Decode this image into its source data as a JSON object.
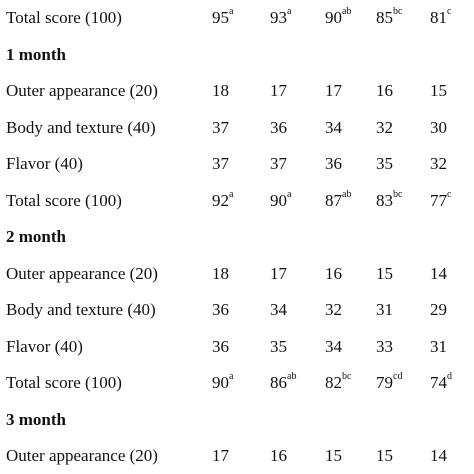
{
  "rows": [
    {
      "type": "data",
      "label": "Total score (100)",
      "values": [
        {
          "v": "95",
          "s": "a"
        },
        {
          "v": "93",
          "s": "a"
        },
        {
          "v": "90",
          "s": "ab"
        },
        {
          "v": "85",
          "s": "bc"
        },
        {
          "v": "81",
          "s": "c"
        }
      ]
    },
    {
      "type": "section",
      "label": "1 month"
    },
    {
      "type": "data",
      "label": "Outer appearance (20)",
      "values": [
        {
          "v": "18",
          "s": ""
        },
        {
          "v": "17",
          "s": ""
        },
        {
          "v": "17",
          "s": ""
        },
        {
          "v": "16",
          "s": ""
        },
        {
          "v": "15",
          "s": ""
        }
      ]
    },
    {
      "type": "data",
      "label": "Body and texture (40)",
      "values": [
        {
          "v": "37",
          "s": ""
        },
        {
          "v": "36",
          "s": ""
        },
        {
          "v": "34",
          "s": ""
        },
        {
          "v": "32",
          "s": ""
        },
        {
          "v": "30",
          "s": ""
        }
      ]
    },
    {
      "type": "data",
      "label": "Flavor (40)",
      "values": [
        {
          "v": "37",
          "s": ""
        },
        {
          "v": "37",
          "s": ""
        },
        {
          "v": "36",
          "s": ""
        },
        {
          "v": "35",
          "s": ""
        },
        {
          "v": "32",
          "s": ""
        }
      ]
    },
    {
      "type": "data",
      "label": "Total score (100)",
      "values": [
        {
          "v": "92",
          "s": "a"
        },
        {
          "v": "90",
          "s": "a"
        },
        {
          "v": "87",
          "s": "ab"
        },
        {
          "v": "83",
          "s": "bc"
        },
        {
          "v": "77",
          "s": "c"
        }
      ]
    },
    {
      "type": "section",
      "label": "2 month"
    },
    {
      "type": "data",
      "label": "Outer appearance (20)",
      "values": [
        {
          "v": "18",
          "s": ""
        },
        {
          "v": "17",
          "s": ""
        },
        {
          "v": "16",
          "s": ""
        },
        {
          "v": "15",
          "s": ""
        },
        {
          "v": "14",
          "s": ""
        }
      ]
    },
    {
      "type": "data",
      "label": "Body and texture (40)",
      "values": [
        {
          "v": "36",
          "s": ""
        },
        {
          "v": "34",
          "s": ""
        },
        {
          "v": "32",
          "s": ""
        },
        {
          "v": "31",
          "s": ""
        },
        {
          "v": "29",
          "s": ""
        }
      ]
    },
    {
      "type": "data",
      "label": "Flavor (40)",
      "values": [
        {
          "v": "36",
          "s": ""
        },
        {
          "v": "35",
          "s": ""
        },
        {
          "v": "34",
          "s": ""
        },
        {
          "v": "33",
          "s": ""
        },
        {
          "v": "31",
          "s": ""
        }
      ]
    },
    {
      "type": "data",
      "label": "Total score (100)",
      "values": [
        {
          "v": "90",
          "s": "a"
        },
        {
          "v": "86",
          "s": "ab"
        },
        {
          "v": "82",
          "s": "bc"
        },
        {
          "v": "79",
          "s": "cd"
        },
        {
          "v": "74",
          "s": "d"
        }
      ]
    },
    {
      "type": "section",
      "label": "3 month"
    },
    {
      "type": "data",
      "label": "Outer appearance (20)",
      "values": [
        {
          "v": "17",
          "s": ""
        },
        {
          "v": "16",
          "s": ""
        },
        {
          "v": "15",
          "s": ""
        },
        {
          "v": "15",
          "s": ""
        },
        {
          "v": "14",
          "s": ""
        }
      ]
    }
  ]
}
